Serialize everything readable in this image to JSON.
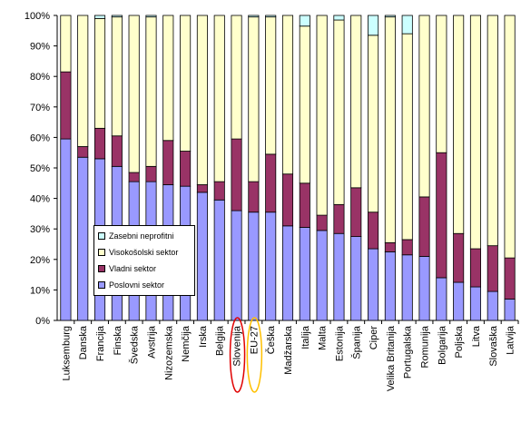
{
  "chart_data": {
    "type": "bar",
    "stacked": true,
    "title": "",
    "xlabel": "",
    "ylabel": "",
    "ylim": [
      0,
      100
    ],
    "yticks": [
      "0%",
      "10%",
      "20%",
      "30%",
      "40%",
      "50%",
      "60%",
      "70%",
      "80%",
      "90%",
      "100%"
    ],
    "categories": [
      "Luksemburg",
      "Danska",
      "Francija",
      "Finska",
      "Švedska",
      "Avstrija",
      "Nizozemska",
      "Nemčija",
      "Irska",
      "Belgija",
      "Slovenija",
      "EU-27",
      "Češka",
      "Madžarska",
      "Italija",
      "Malta",
      "Estonija",
      "Španija",
      "Ciper",
      "Velika Britanija",
      "Portugalska",
      "Romunija",
      "Bolgarija",
      "Poljska",
      "Litva",
      "Slovaška",
      "Latvija"
    ],
    "series": [
      {
        "name": "Poslovni sektor",
        "color": "#9999ff",
        "values": [
          59.5,
          53.5,
          53,
          50.5,
          45.5,
          45.5,
          44.5,
          44,
          42,
          39.5,
          36,
          35.5,
          35.5,
          31,
          30.5,
          29.5,
          28.5,
          27.5,
          23.5,
          22.5,
          21.5,
          21,
          14,
          12.5,
          11,
          9.5,
          7
        ]
      },
      {
        "name": "Vladni sektor",
        "color": "#993366",
        "values": [
          22,
          3.5,
          10,
          10,
          3,
          5,
          14.5,
          11.5,
          2.5,
          6,
          23.5,
          10,
          19,
          17,
          14.5,
          5,
          9.5,
          16,
          12,
          3,
          5,
          19.5,
          41,
          16,
          12.5,
          15,
          13.5
        ]
      },
      {
        "name": "Visokošolski sektor",
        "color": "#ffffcc",
        "values": [
          18.5,
          43,
          36,
          39,
          51.5,
          49,
          41,
          44.5,
          55.5,
          54.5,
          40.5,
          54,
          45,
          52,
          51.5,
          65.5,
          60.5,
          56.5,
          58,
          74,
          67.5,
          59.5,
          45,
          71.5,
          76.5,
          75.5,
          79.5
        ]
      },
      {
        "name": "Zasebni neprofitni",
        "color": "#ccffff",
        "values": [
          0,
          0,
          1,
          0.5,
          0,
          0.5,
          0,
          0,
          0,
          0,
          0,
          0.5,
          0.5,
          0,
          3.5,
          0,
          1.5,
          0,
          6.5,
          0.5,
          6,
          0,
          0,
          0,
          0,
          0,
          0
        ]
      }
    ],
    "legend": {
      "placement": "lower-left inside plot",
      "order": [
        "Zasebni neprofitni",
        "Visokošolski sektor",
        "Vladni sektor",
        "Poslovni sektor"
      ]
    },
    "highlights": [
      {
        "category": "Slovenija",
        "shape": "ellipse",
        "color": "#e00000"
      },
      {
        "category": "EU-27",
        "shape": "ellipse",
        "color": "#ffc000"
      }
    ],
    "grid": false
  }
}
